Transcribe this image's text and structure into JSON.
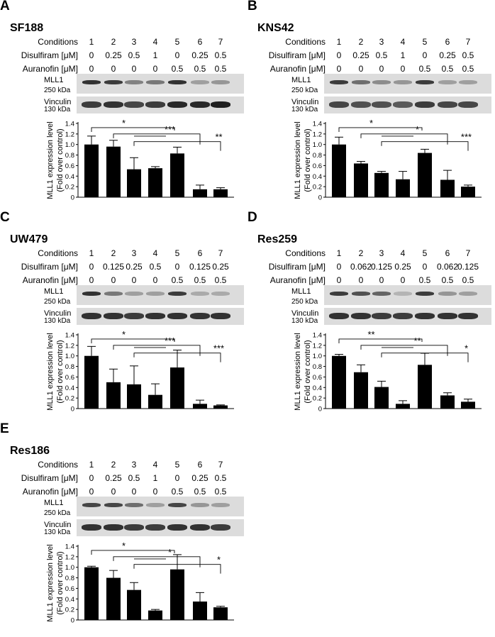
{
  "chart_data": [
    {
      "type": "bar",
      "letter": "A",
      "cell_line": "SF188",
      "conditions_label": "Conditions",
      "conditions": [
        "1",
        "2",
        "3",
        "4",
        "5",
        "6",
        "7"
      ],
      "disulfiram_label": "Disulfiram [μM]",
      "disulfiram": [
        "0",
        "0.25",
        "0.5",
        "1",
        "0",
        "0.25",
        "0.5"
      ],
      "auranofin_label": "Auranofin [μM]",
      "auranofin": [
        "0",
        "0",
        "0",
        "0",
        "0.5",
        "0.5",
        "0.5"
      ],
      "blot_labels": {
        "top": "MLL1",
        "top_kda": "250 kDa",
        "bottom": "Vinculin",
        "bottom_kda": "130 kDa"
      },
      "ylabel": "MLL1 expression level",
      "ylabel2": "(Fold over control)",
      "ylim": [
        0,
        1.4
      ],
      "yticks": [
        "0",
        "0.2",
        "0.4",
        "0.6",
        "0.8",
        "1.0",
        "1.2",
        "1.4"
      ],
      "values": [
        1.0,
        0.96,
        0.53,
        0.55,
        0.83,
        0.15,
        0.15
      ],
      "errors": [
        0.16,
        0.12,
        0.22,
        0.03,
        0.12,
        0.08,
        0.03
      ],
      "bands": {
        "mll1": [
          0.85,
          0.8,
          0.45,
          0.5,
          0.85,
          0.3,
          0.35
        ],
        "vinculin": [
          0.8,
          0.85,
          0.75,
          0.8,
          0.9,
          0.9,
          0.95
        ]
      },
      "significance": [
        "*",
        "***",
        "**"
      ]
    },
    {
      "type": "bar",
      "letter": "B",
      "cell_line": "KNS42",
      "conditions_label": "Conditions",
      "conditions": [
        "1",
        "2",
        "3",
        "4",
        "5",
        "6",
        "7"
      ],
      "disulfiram_label": "Disulfiram [μM]",
      "disulfiram": [
        "0",
        "0.25",
        "0.5",
        "1",
        "0",
        "0.25",
        "0.5"
      ],
      "auranofin_label": "Auranofin [μM]",
      "auranofin": [
        "0",
        "0",
        "0",
        "0",
        "0.5",
        "0.5",
        "0.5"
      ],
      "blot_labels": {
        "top": "MLL1",
        "top_kda": "250 kDa",
        "bottom": "Vinculin",
        "bottom_kda": "130 kDa"
      },
      "ylabel": "MLL1 expression level",
      "ylabel2": "(Fold over control)",
      "ylim": [
        0,
        1.4
      ],
      "yticks": [
        "0",
        "0.2",
        "0.4",
        "0.6",
        "0.8",
        "1.0",
        "1.2",
        "1.4"
      ],
      "values": [
        1.0,
        0.64,
        0.46,
        0.34,
        0.84,
        0.33,
        0.2
      ],
      "errors": [
        0.14,
        0.04,
        0.03,
        0.15,
        0.07,
        0.18,
        0.03
      ],
      "bands": {
        "mll1": [
          0.8,
          0.55,
          0.4,
          0.35,
          0.8,
          0.3,
          0.3
        ],
        "vinculin": [
          0.75,
          0.7,
          0.7,
          0.65,
          0.8,
          0.75,
          0.75
        ]
      },
      "significance": [
        "*",
        "*",
        "***"
      ]
    },
    {
      "type": "bar",
      "letter": "C",
      "cell_line": "UW479",
      "conditions_label": "Conditions",
      "conditions": [
        "1",
        "2",
        "3",
        "4",
        "5",
        "6",
        "7"
      ],
      "disulfiram_label": "Disulfiram [μM]",
      "disulfiram": [
        "0",
        "0.125",
        "0.25",
        "0.5",
        "0",
        "0.125",
        "0.25"
      ],
      "auranofin_label": "Auranofin [μM]",
      "auranofin": [
        "0",
        "0",
        "0",
        "0",
        "0.5",
        "0.5",
        "0.5"
      ],
      "blot_labels": {
        "top": "MLL1",
        "top_kda": "250 kDa",
        "bottom": "Vinculin",
        "bottom_kda": "130 kDa"
      },
      "ylabel": "MLL1 expression level",
      "ylabel2": "(Fold over control)",
      "ylim": [
        0,
        1.4
      ],
      "yticks": [
        "0",
        "0.2",
        "0.4",
        "0.6",
        "0.8",
        "1.0",
        "1.2",
        "1.4"
      ],
      "values": [
        1.0,
        0.5,
        0.46,
        0.26,
        0.78,
        0.09,
        0.06
      ],
      "errors": [
        0.18,
        0.25,
        0.35,
        0.21,
        0.33,
        0.07,
        0.01
      ],
      "bands": {
        "mll1": [
          0.85,
          0.5,
          0.3,
          0.3,
          0.8,
          0.25,
          0.25
        ],
        "vinculin": [
          0.85,
          0.85,
          0.8,
          0.85,
          0.85,
          0.85,
          0.85
        ]
      },
      "significance": [
        "*",
        "***",
        "***"
      ]
    },
    {
      "type": "bar",
      "letter": "D",
      "cell_line": "Res259",
      "conditions_label": "Conditions",
      "conditions": [
        "1",
        "2",
        "3",
        "4",
        "5",
        "6",
        "7"
      ],
      "disulfiram_label": "Disulfiram [μM]",
      "disulfiram": [
        "0",
        "0.062",
        "0.125",
        "0.25",
        "0",
        "0.062",
        "0.125"
      ],
      "auranofin_label": "Auranofin [μM]",
      "auranofin": [
        "0",
        "0",
        "0",
        "0",
        "0.5",
        "0.5",
        "0.5"
      ],
      "blot_labels": {
        "top": "MLL1",
        "top_kda": "250 kDa",
        "bottom": "Vinculin",
        "bottom_kda": "130 kDa"
      },
      "ylabel": "MLL1 expression level",
      "ylabel2": "(Fold over control)",
      "ylim": [
        0,
        1.4
      ],
      "yticks": [
        "0",
        "0.2",
        "0.4",
        "0.6",
        "0.8",
        "1.0",
        "1.2",
        "1.4"
      ],
      "values": [
        1.0,
        0.69,
        0.41,
        0.09,
        0.83,
        0.25,
        0.13
      ],
      "errors": [
        0.03,
        0.14,
        0.11,
        0.06,
        0.22,
        0.05,
        0.05
      ],
      "bands": {
        "mll1": [
          0.8,
          0.7,
          0.6,
          0.2,
          0.8,
          0.35,
          0.3
        ],
        "vinculin": [
          0.85,
          0.85,
          0.8,
          0.8,
          0.85,
          0.85,
          0.85
        ]
      },
      "significance": [
        "**",
        "**",
        "*"
      ]
    },
    {
      "type": "bar",
      "letter": "E",
      "cell_line": "Res186",
      "conditions_label": "Conditions",
      "conditions": [
        "1",
        "2",
        "3",
        "4",
        "5",
        "6",
        "7"
      ],
      "disulfiram_label": "Disulfiram [μM]",
      "disulfiram": [
        "0",
        "0.25",
        "0.5",
        "1",
        "0",
        "0.25",
        "0.5"
      ],
      "auranofin_label": "Auranofin [μM]",
      "auranofin": [
        "0",
        "0",
        "0",
        "0",
        "0.5",
        "0.5",
        "0.5"
      ],
      "blot_labels": {
        "top": "MLL1",
        "top_kda": "250 kDa",
        "bottom": "Vinculin",
        "bottom_kda": "130 kDa"
      },
      "ylabel": "MLL1 expression level",
      "ylabel2": "(Fold over control)",
      "ylim": [
        0,
        1.4
      ],
      "yticks": [
        "0",
        "0.2",
        "0.4",
        "0.6",
        "0.8",
        "1.0",
        "1.2",
        "1.4"
      ],
      "values": [
        1.0,
        0.8,
        0.57,
        0.18,
        0.96,
        0.35,
        0.24
      ],
      "errors": [
        0.02,
        0.14,
        0.14,
        0.02,
        0.28,
        0.17,
        0.02
      ],
      "bands": {
        "mll1": [
          0.75,
          0.75,
          0.55,
          0.3,
          0.75,
          0.35,
          0.3
        ],
        "vinculin": [
          0.85,
          0.85,
          0.8,
          0.8,
          0.85,
          0.85,
          0.8
        ]
      },
      "significance": [
        "*",
        "*",
        "*"
      ]
    }
  ]
}
